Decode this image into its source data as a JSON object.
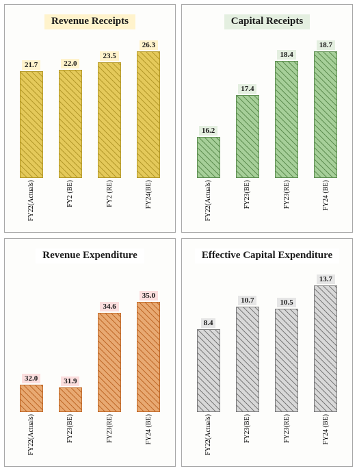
{
  "layout": {
    "rows": 2,
    "cols": 2,
    "panel_border": "#a8a8a8",
    "page_bg": "#ffffff"
  },
  "panels": [
    {
      "id": "revenue-receipts",
      "title": "Revenue Receipts",
      "title_bg": "#fff3cc",
      "title_color": "#1a1a1a",
      "type": "bar",
      "ylim": [
        0,
        28
      ],
      "bar_fill": "#e4c95a",
      "bar_border": "#b59a2b",
      "hatch": "diag",
      "hatch_color": "#b59a2b",
      "value_label_bg": "#fff3cc",
      "value_label_color": "#1a1a1a",
      "categories": [
        "FY22(Actuals)",
        "FY2 (BE)",
        "FY2 (RE)",
        "FY24(BE)"
      ],
      "values": [
        21.7,
        22.0,
        23.5,
        26.3
      ],
      "value_fmt": [
        "21.7",
        "22.0",
        "23.5",
        "26.3"
      ]
    },
    {
      "id": "capital-receipts",
      "title": "Capital Receipts",
      "title_bg": "#e4efe0",
      "title_color": "#1a1a1a",
      "type": "bar",
      "ylim": [
        15,
        19
      ],
      "bar_fill": "#a6cf99",
      "bar_border": "#5f8f52",
      "hatch": "diag",
      "hatch_color": "#5f8f52",
      "value_label_bg": "#e4efe0",
      "value_label_color": "#1a1a1a",
      "categories": [
        "FY22(Actuals)",
        "FY23(BE)",
        "FY23(RE)",
        "FY24 (BE)"
      ],
      "values": [
        16.2,
        17.4,
        18.4,
        18.7
      ],
      "value_fmt": [
        "16.2",
        "17.4",
        "18.4",
        "18.7"
      ]
    },
    {
      "id": "revenue-expenditure",
      "title": "Revenue Expenditure",
      "title_bg": "#ffffff",
      "title_color": "#1a1a1a",
      "type": "bar",
      "ylim": [
        31,
        36
      ],
      "bar_fill": "#e8a972",
      "bar_border": "#c06a2a",
      "hatch": "diag",
      "hatch_color": "#c06a2a",
      "value_label_bg": "#fbdede",
      "value_label_color": "#1a1a1a",
      "categories": [
        "FY22(Actuals)",
        "FY23(BE)",
        "FY23(RE)",
        "FY24 (BE)"
      ],
      "values": [
        32.0,
        31.9,
        34.6,
        35.0
      ],
      "value_fmt": [
        "32.0",
        "31.9",
        "34.6",
        "35.0"
      ]
    },
    {
      "id": "effective-capital-expenditure",
      "title": "Effective Capital Expenditure",
      "title_bg": "#ffffff",
      "title_color": "#1a1a1a",
      "type": "bar",
      "ylim": [
        0,
        14
      ],
      "bar_fill": "#d8d8d8",
      "bar_border": "#7a7a7a",
      "hatch": "diag",
      "hatch_color": "#7a7a7a",
      "value_label_bg": "#e6e6e6",
      "value_label_color": "#1a1a1a",
      "categories": [
        "FY22(Actuals)",
        "FY23(BE)",
        "FY23(RE)",
        "FY24 (BE)"
      ],
      "values": [
        8.4,
        10.7,
        10.5,
        13.7
      ],
      "value_fmt": [
        "8.4",
        "10.7",
        "10.5",
        "13.7"
      ]
    }
  ]
}
